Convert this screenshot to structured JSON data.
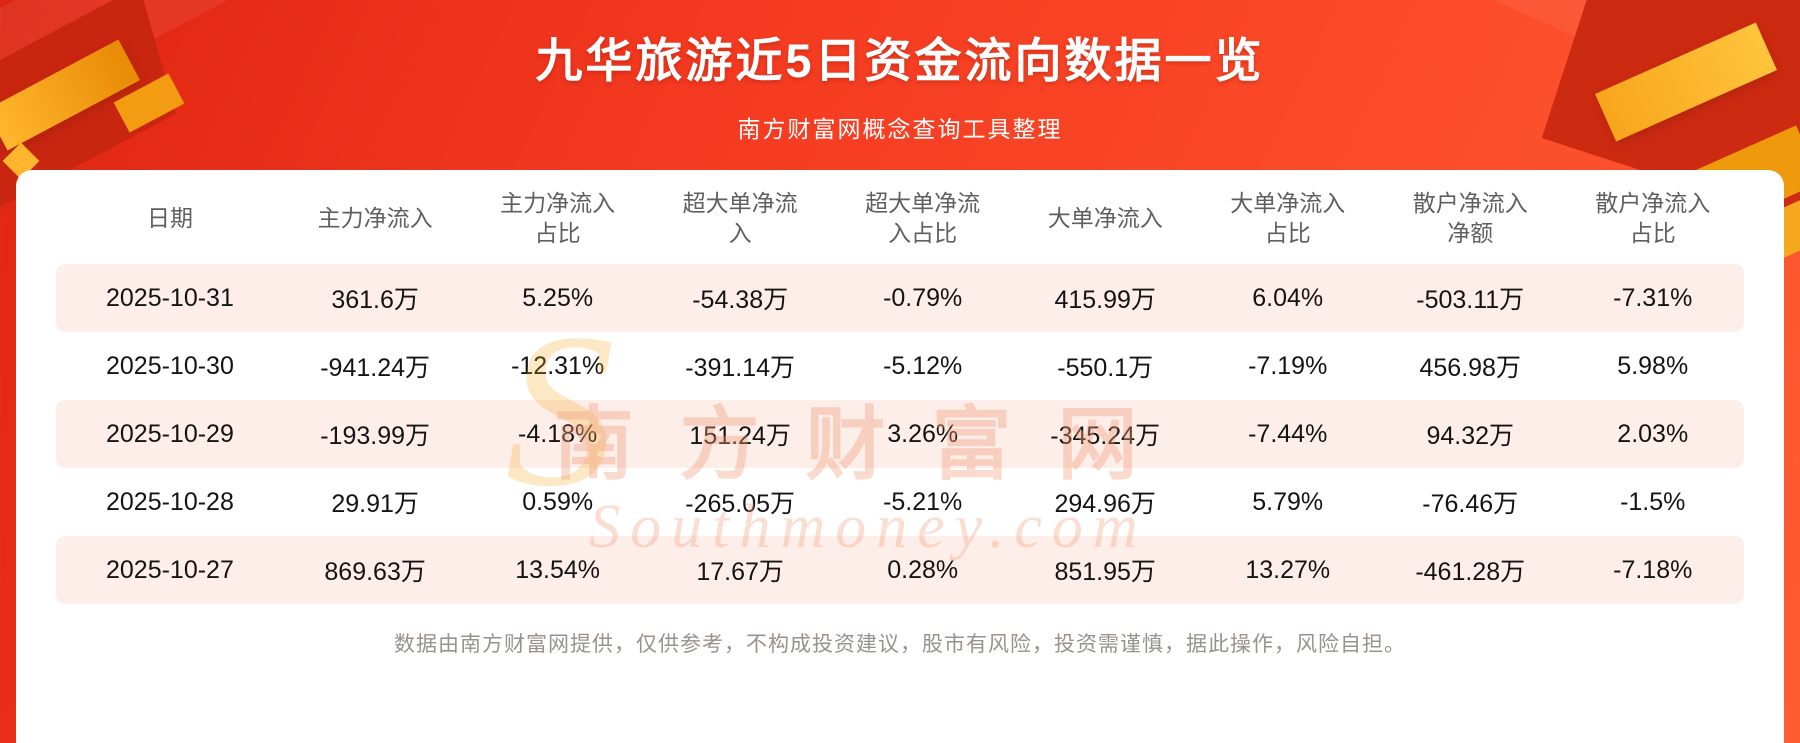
{
  "header": {
    "title": "九华旅游近5日资金流向数据一览",
    "subtitle": "南方财富网概念查询工具整理"
  },
  "watermark": {
    "brand": "南方财富网",
    "domain": "Southmoney.com",
    "swoosh": "S"
  },
  "chart_data": {
    "type": "table",
    "title": "九华旅游近5日资金流向数据一览",
    "columns": [
      "日期",
      "主力净流入",
      "主力净流入占比",
      "超大单净流入",
      "超大单净流入占比",
      "大单净流入",
      "大单净流入占比",
      "散户净流入净额",
      "散户净流入占比"
    ],
    "rows": [
      [
        "2025-10-31",
        "361.6万",
        "5.25%",
        "-54.38万",
        "-0.79%",
        "415.99万",
        "6.04%",
        "-503.11万",
        "-7.31%"
      ],
      [
        "2025-10-30",
        "-941.24万",
        "-12.31%",
        "-391.14万",
        "-5.12%",
        "-550.1万",
        "-7.19%",
        "456.98万",
        "5.98%"
      ],
      [
        "2025-10-29",
        "-193.99万",
        "-4.18%",
        "151.24万",
        "3.26%",
        "-345.24万",
        "-7.44%",
        "94.32万",
        "2.03%"
      ],
      [
        "2025-10-28",
        "29.91万",
        "0.59%",
        "-265.05万",
        "-5.21%",
        "294.96万",
        "5.79%",
        "-76.46万",
        "-1.5%"
      ],
      [
        "2025-10-27",
        "869.63万",
        "13.54%",
        "17.67万",
        "0.28%",
        "851.95万",
        "13.27%",
        "-461.28万",
        "-7.18%"
      ]
    ]
  },
  "footer": {
    "disclaimer": "数据由南方财富网提供，仅供参考，不构成投资建议，股市有风险，投资需谨慎，据此操作，风险自担。"
  },
  "colors": {
    "background_red": "#f43a20",
    "stripe_pink": "#fdeeea",
    "gold": "#f7a61c",
    "dark_red": "#c9260f",
    "header_text": "#5f5f5f",
    "body_text": "#141414",
    "watermark": "rgba(240,158,122,0.38)"
  }
}
